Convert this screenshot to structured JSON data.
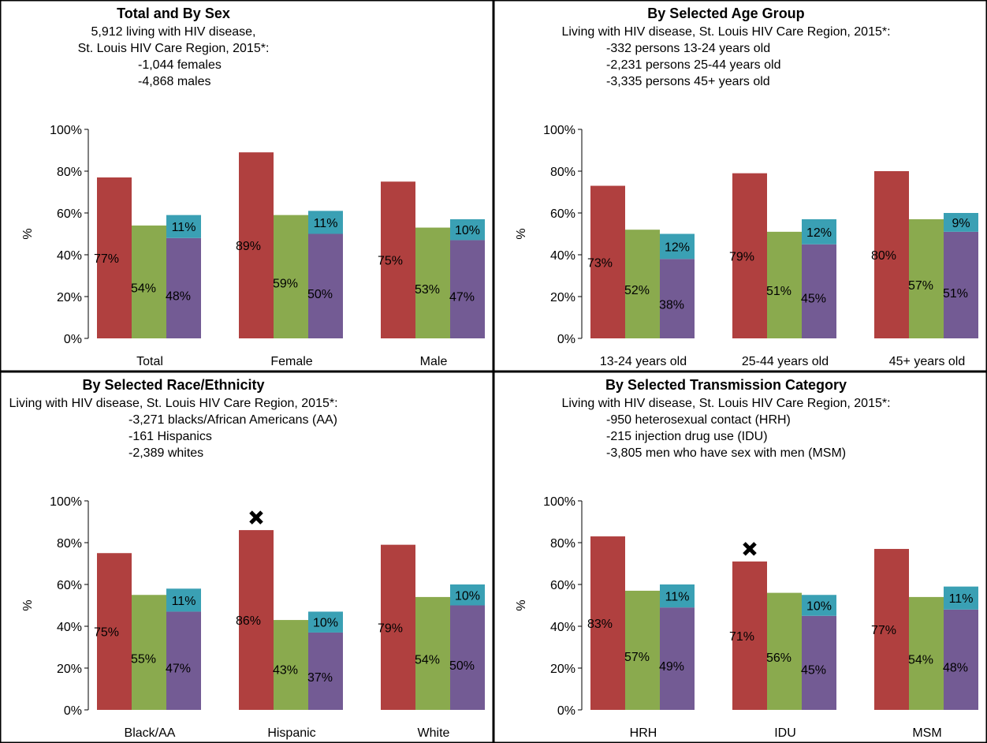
{
  "colors": {
    "series1": "#b0403f",
    "series2": "#8aaa4e",
    "series3": "#735b94",
    "series3_cap": "#3aa0b4",
    "border": "#000000",
    "marker": "#000000"
  },
  "chart_data": [
    {
      "type": "bar",
      "title": "Total and By Sex",
      "subtitle": [
        "5,912 living with HIV disease,",
        "St. Louis HIV Care Region, 2015*:",
        "-1,044 females",
        "-4,868 males"
      ],
      "ylabel": "%",
      "ylim": [
        0,
        100
      ],
      "yticks": [
        "0%",
        "20%",
        "40%",
        "60%",
        "80%",
        "100%"
      ],
      "categories": [
        "Total",
        "Female",
        "Male"
      ],
      "series": [
        {
          "values": [
            77,
            89,
            75
          ],
          "labels": [
            "77%",
            "89%",
            "75%"
          ]
        },
        {
          "values": [
            54,
            59,
            53
          ],
          "labels": [
            "54%",
            "59%",
            "53%"
          ]
        },
        {
          "values": [
            48,
            50,
            47
          ],
          "labels": [
            "48%",
            "50%",
            "47%"
          ]
        }
      ],
      "stacked_cap": {
        "values": [
          11,
          11,
          10
        ],
        "labels": [
          "11%",
          "11%",
          "10%"
        ]
      },
      "markers": []
    },
    {
      "type": "bar",
      "title": "By Selected Age Group",
      "subtitle": [
        "Living with HIV disease, St. Louis HIV Care Region, 2015*:",
        "-332 persons 13-24 years old",
        "-2,231 persons 25-44 years old",
        "-3,335 persons 45+ years old"
      ],
      "ylabel": "%",
      "ylim": [
        0,
        100
      ],
      "yticks": [
        "0%",
        "20%",
        "40%",
        "60%",
        "80%",
        "100%"
      ],
      "categories": [
        "13-24 years old",
        "25-44 years old",
        "45+ years old"
      ],
      "series": [
        {
          "values": [
            73,
            79,
            80
          ],
          "labels": [
            "73%",
            "79%",
            "80%"
          ]
        },
        {
          "values": [
            52,
            51,
            57
          ],
          "labels": [
            "52%",
            "51%",
            "57%"
          ]
        },
        {
          "values": [
            38,
            45,
            51
          ],
          "labels": [
            "38%",
            "45%",
            "51%"
          ]
        }
      ],
      "stacked_cap": {
        "values": [
          12,
          12,
          9
        ],
        "labels": [
          "12%",
          "12%",
          "9%"
        ]
      },
      "markers": []
    },
    {
      "type": "bar",
      "title": "By Selected Race/Ethnicity",
      "subtitle": [
        "Living with HIV disease, St. Louis HIV Care Region, 2015*:",
        "-3,271 blacks/African Americans (AA)",
        "-161 Hispanics",
        "-2,389 whites"
      ],
      "ylabel": "%",
      "ylim": [
        0,
        100
      ],
      "yticks": [
        "0%",
        "20%",
        "40%",
        "60%",
        "80%",
        "100%"
      ],
      "categories": [
        "Black/AA",
        "Hispanic",
        "White"
      ],
      "series": [
        {
          "values": [
            75,
            86,
            79
          ],
          "labels": [
            "75%",
            "86%",
            "79%"
          ]
        },
        {
          "values": [
            55,
            43,
            54
          ],
          "labels": [
            "55%",
            "43%",
            "54%"
          ]
        },
        {
          "values": [
            47,
            37,
            50
          ],
          "labels": [
            "47%",
            "37%",
            "50%"
          ]
        }
      ],
      "stacked_cap": {
        "values": [
          11,
          10,
          10
        ],
        "labels": [
          "11%",
          "10%",
          "10%"
        ]
      },
      "markers": [
        1
      ]
    },
    {
      "type": "bar",
      "title": "By Selected Transmission Category",
      "subtitle": [
        "Living with HIV disease, St. Louis HIV Care Region, 2015*:",
        "-950 heterosexual contact (HRH)",
        "-215 injection drug use (IDU)",
        "-3,805 men who have sex with men (MSM)"
      ],
      "ylabel": "%",
      "ylim": [
        0,
        100
      ],
      "yticks": [
        "0%",
        "20%",
        "40%",
        "60%",
        "80%",
        "100%"
      ],
      "categories": [
        "HRH",
        "IDU",
        "MSM"
      ],
      "series": [
        {
          "values": [
            83,
            71,
            77
          ],
          "labels": [
            "83%",
            "71%",
            "77%"
          ]
        },
        {
          "values": [
            57,
            56,
            54
          ],
          "labels": [
            "57%",
            "56%",
            "54%"
          ]
        },
        {
          "values": [
            49,
            45,
            48
          ],
          "labels": [
            "49%",
            "45%",
            "48%"
          ]
        }
      ],
      "stacked_cap": {
        "values": [
          11,
          10,
          11
        ],
        "labels": [
          "11%",
          "10%",
          "11%"
        ]
      },
      "markers": [
        1
      ]
    }
  ]
}
